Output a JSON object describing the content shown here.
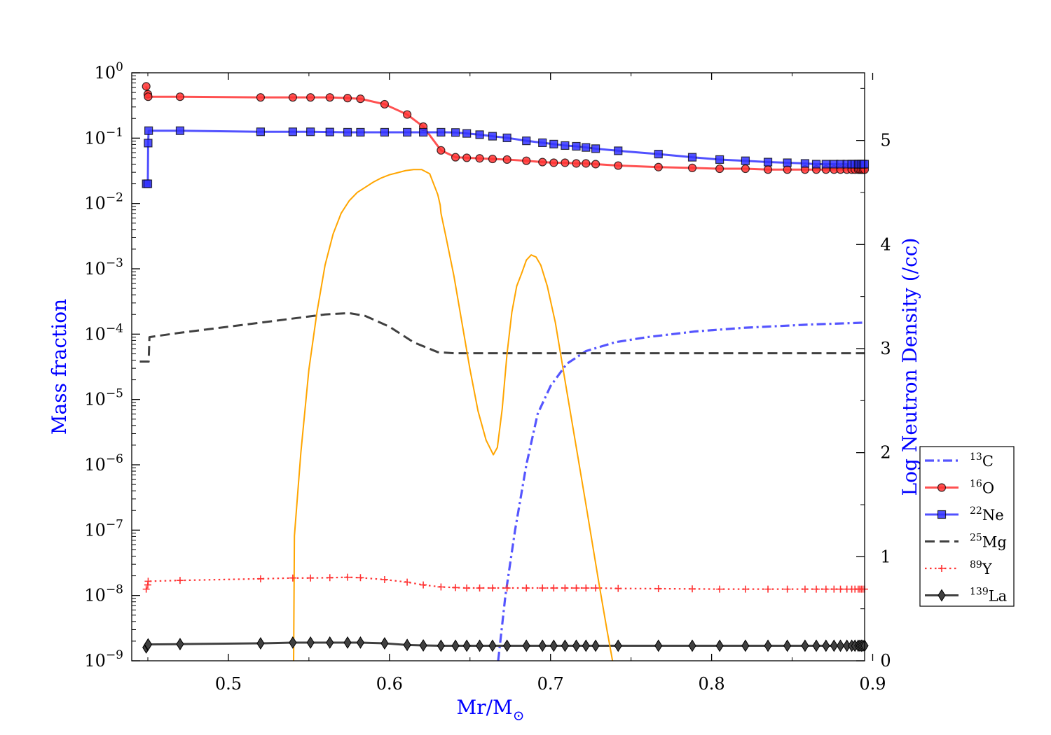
{
  "chart_data": {
    "type": "line",
    "xlabel": "Mr/M",
    "xlabel_symbol": "⊙",
    "ylabel_left": "Mass fraction",
    "ylabel_right": "Log Neutron Density (/cc)",
    "xlim": [
      0.44,
      0.895
    ],
    "ylim_left": [
      1e-09,
      1
    ],
    "yscale_left": "log",
    "ylim_right": [
      0,
      5.65
    ],
    "x_ticks": [
      "0.5",
      "0.6",
      "0.7",
      "0.8",
      "0.9"
    ],
    "x_tick_values": [
      0.5,
      0.6,
      0.7,
      0.8,
      0.9
    ],
    "y_left_ticks": [
      {
        "base": "10",
        "exp": "0"
      },
      {
        "base": "10",
        "exp": "−1"
      },
      {
        "base": "10",
        "exp": "−2"
      },
      {
        "base": "10",
        "exp": "−3"
      },
      {
        "base": "10",
        "exp": "−4"
      },
      {
        "base": "10",
        "exp": "−5"
      },
      {
        "base": "10",
        "exp": "−6"
      },
      {
        "base": "10",
        "exp": "−7"
      },
      {
        "base": "10",
        "exp": "−8"
      },
      {
        "base": "10",
        "exp": "−9"
      }
    ],
    "y_left_tick_exponents": [
      0,
      -1,
      -2,
      -3,
      -4,
      -5,
      -6,
      -7,
      -8,
      -9
    ],
    "y_right_ticks": [
      "0",
      "1",
      "2",
      "3",
      "4",
      "5"
    ],
    "y_right_tick_values": [
      0,
      1,
      2,
      3,
      4,
      5
    ],
    "legend_position": "right, outside plot",
    "colors": {
      "axis_label": "#0000ff",
      "nd": "#ffa500",
      "c13": "#5555ff",
      "o16": "#ff3333",
      "ne22": "#3333ff",
      "mg25": "#404040",
      "y89": "#ff3333",
      "la139": "#404040"
    },
    "series": [
      {
        "key": "c13",
        "name": "13C",
        "mass": "13",
        "element": "C",
        "axis": "left",
        "style": "dashdot",
        "marker": "none",
        "x": [
          0.6675,
          0.672,
          0.678,
          0.685,
          0.692,
          0.7,
          0.71,
          0.722,
          0.74,
          0.76,
          0.79,
          0.82,
          0.86,
          0.895
        ],
        "y": [
          1e-09,
          1e-08,
          1e-07,
          1e-06,
          6e-06,
          1.6e-05,
          3.5e-05,
          5.5e-05,
          7.5e-05,
          9e-05,
          0.00011,
          0.000125,
          0.00014,
          0.00015
        ]
      },
      {
        "key": "o16",
        "name": "16O",
        "mass": "16",
        "element": "O",
        "axis": "left",
        "style": "solid",
        "marker": "circle",
        "x": [
          0.449,
          0.45,
          0.4502,
          0.47,
          0.52,
          0.54,
          0.551,
          0.563,
          0.574,
          0.582,
          0.597,
          0.611,
          0.621,
          0.632,
          0.641,
          0.648,
          0.656,
          0.664,
          0.673,
          0.685,
          0.695,
          0.702,
          0.709,
          0.716,
          0.722,
          0.728,
          0.742,
          0.767,
          0.788,
          0.805,
          0.821,
          0.835,
          0.847,
          0.858,
          0.865,
          0.871,
          0.876,
          0.88,
          0.884,
          0.887,
          0.889,
          0.891,
          0.892,
          0.893,
          0.894,
          0.895
        ],
        "y": [
          0.62,
          0.47,
          0.43,
          0.43,
          0.42,
          0.42,
          0.42,
          0.42,
          0.41,
          0.4,
          0.33,
          0.23,
          0.15,
          0.065,
          0.051,
          0.05,
          0.049,
          0.048,
          0.047,
          0.045,
          0.043,
          0.042,
          0.042,
          0.041,
          0.041,
          0.04,
          0.038,
          0.036,
          0.035,
          0.034,
          0.034,
          0.033,
          0.033,
          0.033,
          0.033,
          0.033,
          0.033,
          0.033,
          0.033,
          0.033,
          0.033,
          0.033,
          0.033,
          0.033,
          0.033,
          0.033
        ]
      },
      {
        "key": "ne22",
        "name": "22Ne",
        "mass": "22",
        "element": "Ne",
        "axis": "left",
        "style": "solid",
        "marker": "square",
        "x": [
          0.449,
          0.45,
          0.4502,
          0.4505,
          0.47,
          0.52,
          0.54,
          0.551,
          0.563,
          0.574,
          0.582,
          0.597,
          0.611,
          0.621,
          0.632,
          0.641,
          0.648,
          0.656,
          0.664,
          0.673,
          0.685,
          0.695,
          0.702,
          0.709,
          0.716,
          0.722,
          0.728,
          0.742,
          0.767,
          0.788,
          0.805,
          0.821,
          0.835,
          0.847,
          0.858,
          0.865,
          0.871,
          0.876,
          0.88,
          0.884,
          0.887,
          0.889,
          0.891,
          0.892,
          0.893,
          0.894,
          0.895
        ],
        "y": [
          0.02,
          0.02,
          0.084,
          0.13,
          0.13,
          0.125,
          0.125,
          0.125,
          0.124,
          0.123,
          0.123,
          0.123,
          0.123,
          0.123,
          0.123,
          0.122,
          0.118,
          0.113,
          0.107,
          0.101,
          0.091,
          0.085,
          0.081,
          0.077,
          0.075,
          0.072,
          0.069,
          0.064,
          0.057,
          0.051,
          0.047,
          0.045,
          0.043,
          0.042,
          0.041,
          0.04,
          0.04,
          0.04,
          0.04,
          0.04,
          0.04,
          0.04,
          0.04,
          0.04,
          0.04,
          0.04,
          0.04
        ]
      },
      {
        "key": "mg25",
        "name": "25Mg",
        "mass": "25",
        "element": "Mg",
        "axis": "left",
        "style": "dashed",
        "marker": "none",
        "x": [
          0.445,
          0.4505,
          0.451,
          0.47,
          0.52,
          0.56,
          0.575,
          0.585,
          0.6,
          0.615,
          0.63,
          0.64,
          0.7,
          0.8,
          0.895
        ],
        "y": [
          3.8e-05,
          3.8e-05,
          9e-05,
          0.000105,
          0.00015,
          0.0002,
          0.00021,
          0.00019,
          0.00013,
          7.5e-05,
          5.3e-05,
          5.1e-05,
          5.1e-05,
          5.1e-05,
          5.1e-05
        ]
      },
      {
        "key": "y89",
        "name": "89Y",
        "mass": "89",
        "element": "Y",
        "axis": "left",
        "style": "dotted",
        "marker": "plus",
        "x": [
          0.449,
          0.45,
          0.4502,
          0.47,
          0.52,
          0.54,
          0.551,
          0.563,
          0.574,
          0.582,
          0.597,
          0.611,
          0.621,
          0.632,
          0.641,
          0.648,
          0.656,
          0.664,
          0.673,
          0.685,
          0.695,
          0.702,
          0.709,
          0.716,
          0.722,
          0.728,
          0.742,
          0.767,
          0.788,
          0.805,
          0.821,
          0.835,
          0.847,
          0.858,
          0.865,
          0.871,
          0.876,
          0.88,
          0.884,
          0.887,
          0.889,
          0.891,
          0.892,
          0.893,
          0.894,
          0.895
        ],
        "y": [
          1.25e-08,
          1.45e-08,
          1.65e-08,
          1.7e-08,
          1.8e-08,
          1.85e-08,
          1.85e-08,
          1.87e-08,
          1.9e-08,
          1.87e-08,
          1.75e-08,
          1.6e-08,
          1.45e-08,
          1.35e-08,
          1.32e-08,
          1.3e-08,
          1.3e-08,
          1.3e-08,
          1.3e-08,
          1.3e-08,
          1.3e-08,
          1.3e-08,
          1.3e-08,
          1.3e-08,
          1.3e-08,
          1.3e-08,
          1.28e-08,
          1.27e-08,
          1.26e-08,
          1.25e-08,
          1.25e-08,
          1.25e-08,
          1.25e-08,
          1.25e-08,
          1.25e-08,
          1.25e-08,
          1.25e-08,
          1.25e-08,
          1.25e-08,
          1.25e-08,
          1.25e-08,
          1.25e-08,
          1.25e-08,
          1.25e-08,
          1.25e-08,
          1.25e-08
        ]
      },
      {
        "key": "la139",
        "name": "139La",
        "mass": "139",
        "element": "La",
        "axis": "left",
        "style": "solid",
        "marker": "diamond",
        "x": [
          0.449,
          0.45,
          0.4502,
          0.47,
          0.52,
          0.54,
          0.551,
          0.563,
          0.574,
          0.582,
          0.597,
          0.611,
          0.621,
          0.632,
          0.641,
          0.648,
          0.656,
          0.664,
          0.673,
          0.685,
          0.695,
          0.702,
          0.709,
          0.716,
          0.722,
          0.728,
          0.742,
          0.767,
          0.788,
          0.805,
          0.821,
          0.835,
          0.847,
          0.858,
          0.865,
          0.871,
          0.876,
          0.88,
          0.884,
          0.887,
          0.889,
          0.891,
          0.892,
          0.893,
          0.894,
          0.895
        ],
        "y": [
          1.6e-09,
          1.75e-09,
          1.78e-09,
          1.8e-09,
          1.85e-09,
          1.9e-09,
          1.9e-09,
          1.9e-09,
          1.9e-09,
          1.9e-09,
          1.85e-09,
          1.75e-09,
          1.72e-09,
          1.7e-09,
          1.7e-09,
          1.7e-09,
          1.7e-09,
          1.7e-09,
          1.7e-09,
          1.7e-09,
          1.7e-09,
          1.7e-09,
          1.7e-09,
          1.7e-09,
          1.7e-09,
          1.7e-09,
          1.7e-09,
          1.7e-09,
          1.7e-09,
          1.7e-09,
          1.7e-09,
          1.7e-09,
          1.7e-09,
          1.7e-09,
          1.7e-09,
          1.7e-09,
          1.7e-09,
          1.7e-09,
          1.7e-09,
          1.7e-09,
          1.7e-09,
          1.7e-09,
          1.7e-09,
          1.7e-09,
          1.7e-09,
          1.7e-09
        ]
      },
      {
        "key": "nd",
        "name": "",
        "axis": "right",
        "style": "solid",
        "marker": "none",
        "x": [
          0.5405,
          0.541,
          0.545,
          0.55,
          0.555,
          0.56,
          0.565,
          0.57,
          0.575,
          0.58,
          0.585,
          0.59,
          0.595,
          0.6,
          0.605,
          0.61,
          0.615,
          0.62,
          0.625,
          0.63,
          0.6315,
          0.632,
          0.635,
          0.64,
          0.645,
          0.65,
          0.655,
          0.66,
          0.6645,
          0.667,
          0.67,
          0.673,
          0.676,
          0.679,
          0.682,
          0.685,
          0.688,
          0.691,
          0.694,
          0.698,
          0.703,
          0.71,
          0.716,
          0.722,
          0.73,
          0.735,
          0.7385
        ],
        "y": [
          0.0,
          1.2,
          2.0,
          2.8,
          3.35,
          3.8,
          4.1,
          4.3,
          4.42,
          4.5,
          4.55,
          4.6,
          4.64,
          4.67,
          4.69,
          4.71,
          4.72,
          4.72,
          4.68,
          4.48,
          4.38,
          4.3,
          4.08,
          3.7,
          3.25,
          2.8,
          2.4,
          2.12,
          1.98,
          2.05,
          2.42,
          2.95,
          3.35,
          3.6,
          3.72,
          3.85,
          3.9,
          3.88,
          3.8,
          3.6,
          3.25,
          2.6,
          2.05,
          1.5,
          0.75,
          0.3,
          0.0
        ]
      }
    ]
  }
}
